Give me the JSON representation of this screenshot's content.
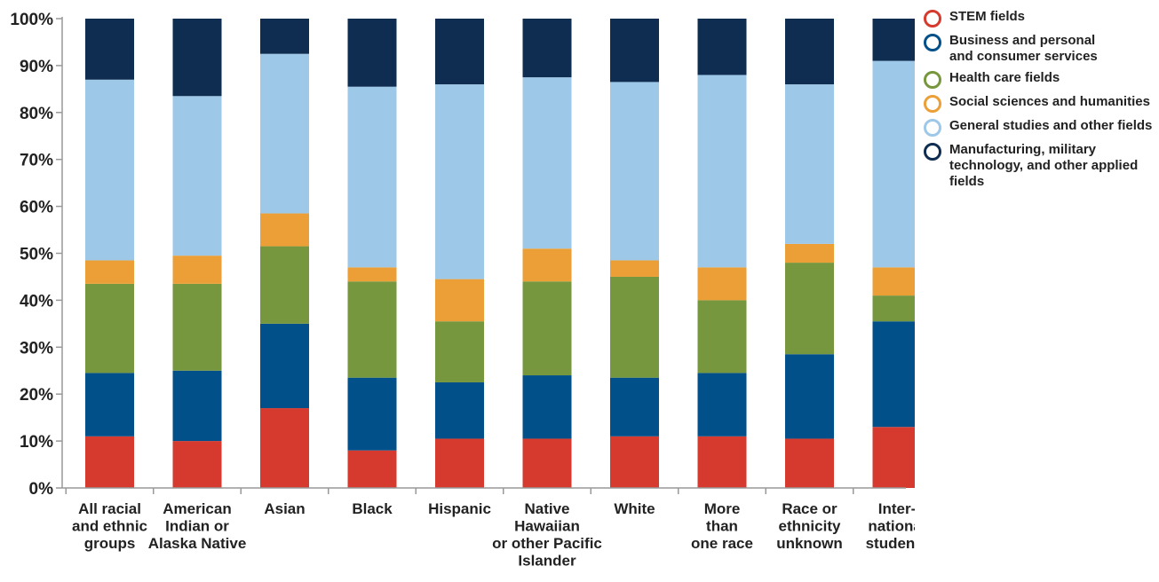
{
  "chart_data": {
    "type": "bar",
    "stacked": true,
    "categories": [
      "All racial\nand ethnic\ngroups",
      "American\nIndian or\nAlaska Native",
      "Asian",
      "Black",
      "Hispanic",
      "Native\nHawaiian\nor other Pacific\nIslander",
      "White",
      "More\nthan\none race",
      "Race or\nethnicity\nunknown",
      "Inter-\nnational\nstudents"
    ],
    "series": [
      {
        "name": "STEM fields",
        "color": "#d63a2e",
        "values": [
          11,
          10,
          17,
          8,
          10.5,
          10.5,
          11,
          11,
          10.5,
          13
        ]
      },
      {
        "name": "Business and personal and consumer services",
        "color": "#01508a",
        "values": [
          13.5,
          15,
          18,
          15.5,
          12,
          13.5,
          12.5,
          13.5,
          18,
          22.5
        ]
      },
      {
        "name": "Health care fields",
        "color": "#76973d",
        "values": [
          19,
          18.5,
          16.5,
          20.5,
          13,
          20,
          21.5,
          15.5,
          19.5,
          5.5
        ]
      },
      {
        "name": "Social sciences and humanities",
        "color": "#eb9f36",
        "values": [
          5,
          6,
          7,
          3,
          9,
          7,
          3.5,
          7,
          4,
          6
        ]
      },
      {
        "name": "General studies and other fields",
        "color": "#9ec8e7",
        "values": [
          38.5,
          34,
          34,
          38.5,
          41.5,
          36.5,
          38,
          41,
          34,
          44
        ]
      },
      {
        "name": "Manufacturing, military technology, and other applied fields",
        "color": "#0f2d51",
        "values": [
          13,
          16.5,
          7.5,
          14.5,
          14,
          12.5,
          13.5,
          12,
          14,
          9
        ]
      }
    ],
    "legend_labels": [
      "STEM fields",
      "Business and personal\nand consumer services",
      "Health care fields",
      "Social sciences and humanities",
      "General studies and other fields",
      "Manufacturing, military\ntechnology, and other applied\nfields"
    ],
    "yticks": [
      "0%",
      "10%",
      "20%",
      "30%",
      "40%",
      "50%",
      "60%",
      "70%",
      "80%",
      "90%",
      "100%"
    ],
    "ylim": [
      0,
      100
    ],
    "title": "",
    "xlabel": "",
    "ylabel": "",
    "grid": false,
    "legend_position": "right"
  }
}
